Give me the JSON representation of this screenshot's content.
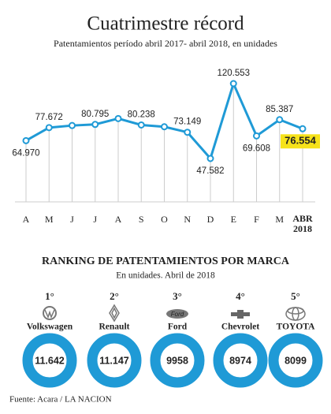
{
  "chart_data": {
    "type": "line",
    "title": "Cuatrimestre récord",
    "subtitle": "Patentamientos período abril 2017- abril 2018,  en unidades",
    "categories": [
      "A",
      "M",
      "J",
      "J",
      "A",
      "S",
      "O",
      "N",
      "D",
      "E",
      "F",
      "M",
      "ABR 2018"
    ],
    "values": [
      64970,
      77672,
      79700,
      80795,
      86500,
      80238,
      78500,
      73149,
      47582,
      120553,
      69608,
      85387,
      76554
    ],
    "value_labels": [
      "64.970",
      "77.672",
      null,
      "80.795",
      null,
      "80.238",
      null,
      "73.149",
      "47.582",
      "120.553",
      "69.608",
      "85.387",
      "76.554"
    ],
    "color": "#1f9ad6",
    "highlight_color": "#f6e21a",
    "grid": true
  },
  "ranking": {
    "title": "RANKING DE PATENTAMIENTOS POR MARCA",
    "subtitle": "En unidades. Abril de 2018",
    "color": "#1f9ad6",
    "items": [
      {
        "rank": "1°",
        "brand": "Volkswagen",
        "value": "11.642"
      },
      {
        "rank": "2°",
        "brand": "Renault",
        "value": "11.147"
      },
      {
        "rank": "3°",
        "brand": "Ford",
        "value": "9958"
      },
      {
        "rank": "4°",
        "brand": "Chevrolet",
        "value": "8974"
      },
      {
        "rank": "5°",
        "brand": "TOYOTA",
        "value": "8099"
      }
    ]
  },
  "footer": "Fuente: Acara / LA NACION"
}
